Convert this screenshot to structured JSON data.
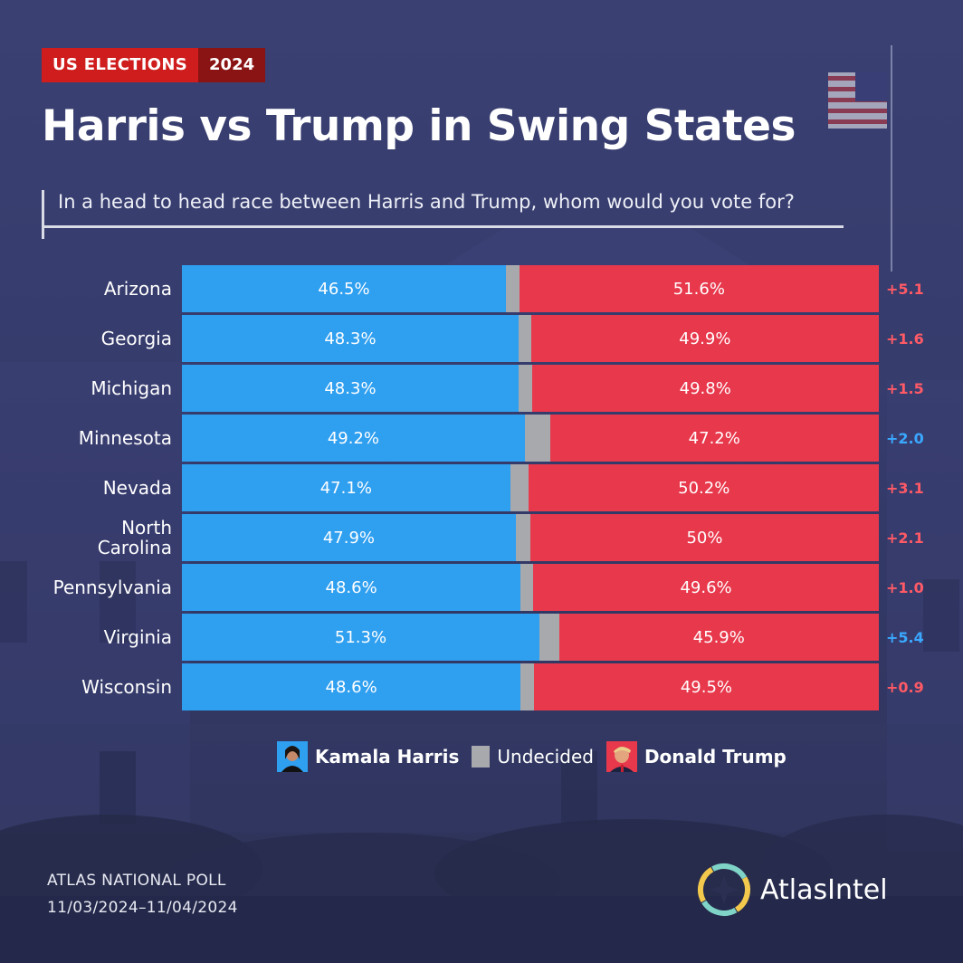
{
  "header": {
    "badge_left": "US ELECTIONS",
    "badge_right": "2024",
    "title": "Harris vs Trump in Swing States",
    "question": "In a head to head race between Harris and Trump, whom would you vote for?"
  },
  "chart_data": {
    "type": "bar",
    "orientation": "horizontal-stacked",
    "categories": [
      "Arizona",
      "Georgia",
      "Michigan",
      "Minnesota",
      "Nevada",
      "North Carolina",
      "Pennsylvania",
      "Virginia",
      "Wisconsin"
    ],
    "series": [
      {
        "name": "Kamala Harris",
        "values": [
          46.5,
          48.3,
          48.3,
          49.2,
          47.1,
          47.9,
          48.6,
          51.3,
          48.6
        ],
        "labels": [
          "46.5%",
          "48.3%",
          "48.3%",
          "49.2%",
          "47.1%",
          "47.9%",
          "48.6%",
          "51.3%",
          "48.6%"
        ]
      },
      {
        "name": "Undecided",
        "values": [
          1.9,
          1.8,
          1.9,
          3.6,
          2.7,
          2.1,
          1.8,
          2.8,
          1.9
        ]
      },
      {
        "name": "Donald Trump",
        "values": [
          51.6,
          49.9,
          49.8,
          47.2,
          50.2,
          50.0,
          49.6,
          45.9,
          49.5
        ],
        "labels": [
          "51.6%",
          "49.9%",
          "49.8%",
          "47.2%",
          "50.2%",
          "50%",
          "49.6%",
          "45.9%",
          "49.5%"
        ]
      }
    ],
    "margins": [
      "+5.1",
      "+1.6",
      "+1.5",
      "+2.0",
      "+3.1",
      "+2.1",
      "+1.0",
      "+5.4",
      "+0.9"
    ],
    "margin_leader": [
      "trump",
      "trump",
      "trump",
      "harris",
      "trump",
      "trump",
      "trump",
      "harris",
      "trump"
    ],
    "xlim": [
      0,
      100
    ],
    "legend": "bottom"
  },
  "colors": {
    "harris": "#2f9ff0",
    "undecided": "#a8a9ad",
    "trump": "#e8384c",
    "margin_trump": "#ff5a66",
    "margin_harris": "#3aa8ff"
  },
  "legend": {
    "harris_label": "Kamala Harris",
    "undecided_label": "Undecided",
    "trump_label": "Donald Trump"
  },
  "footer": {
    "poll_name": "ATLAS NATIONAL POLL",
    "poll_dates": "11/03/2024–11/04/2024",
    "brand": "AtlasIntel"
  }
}
